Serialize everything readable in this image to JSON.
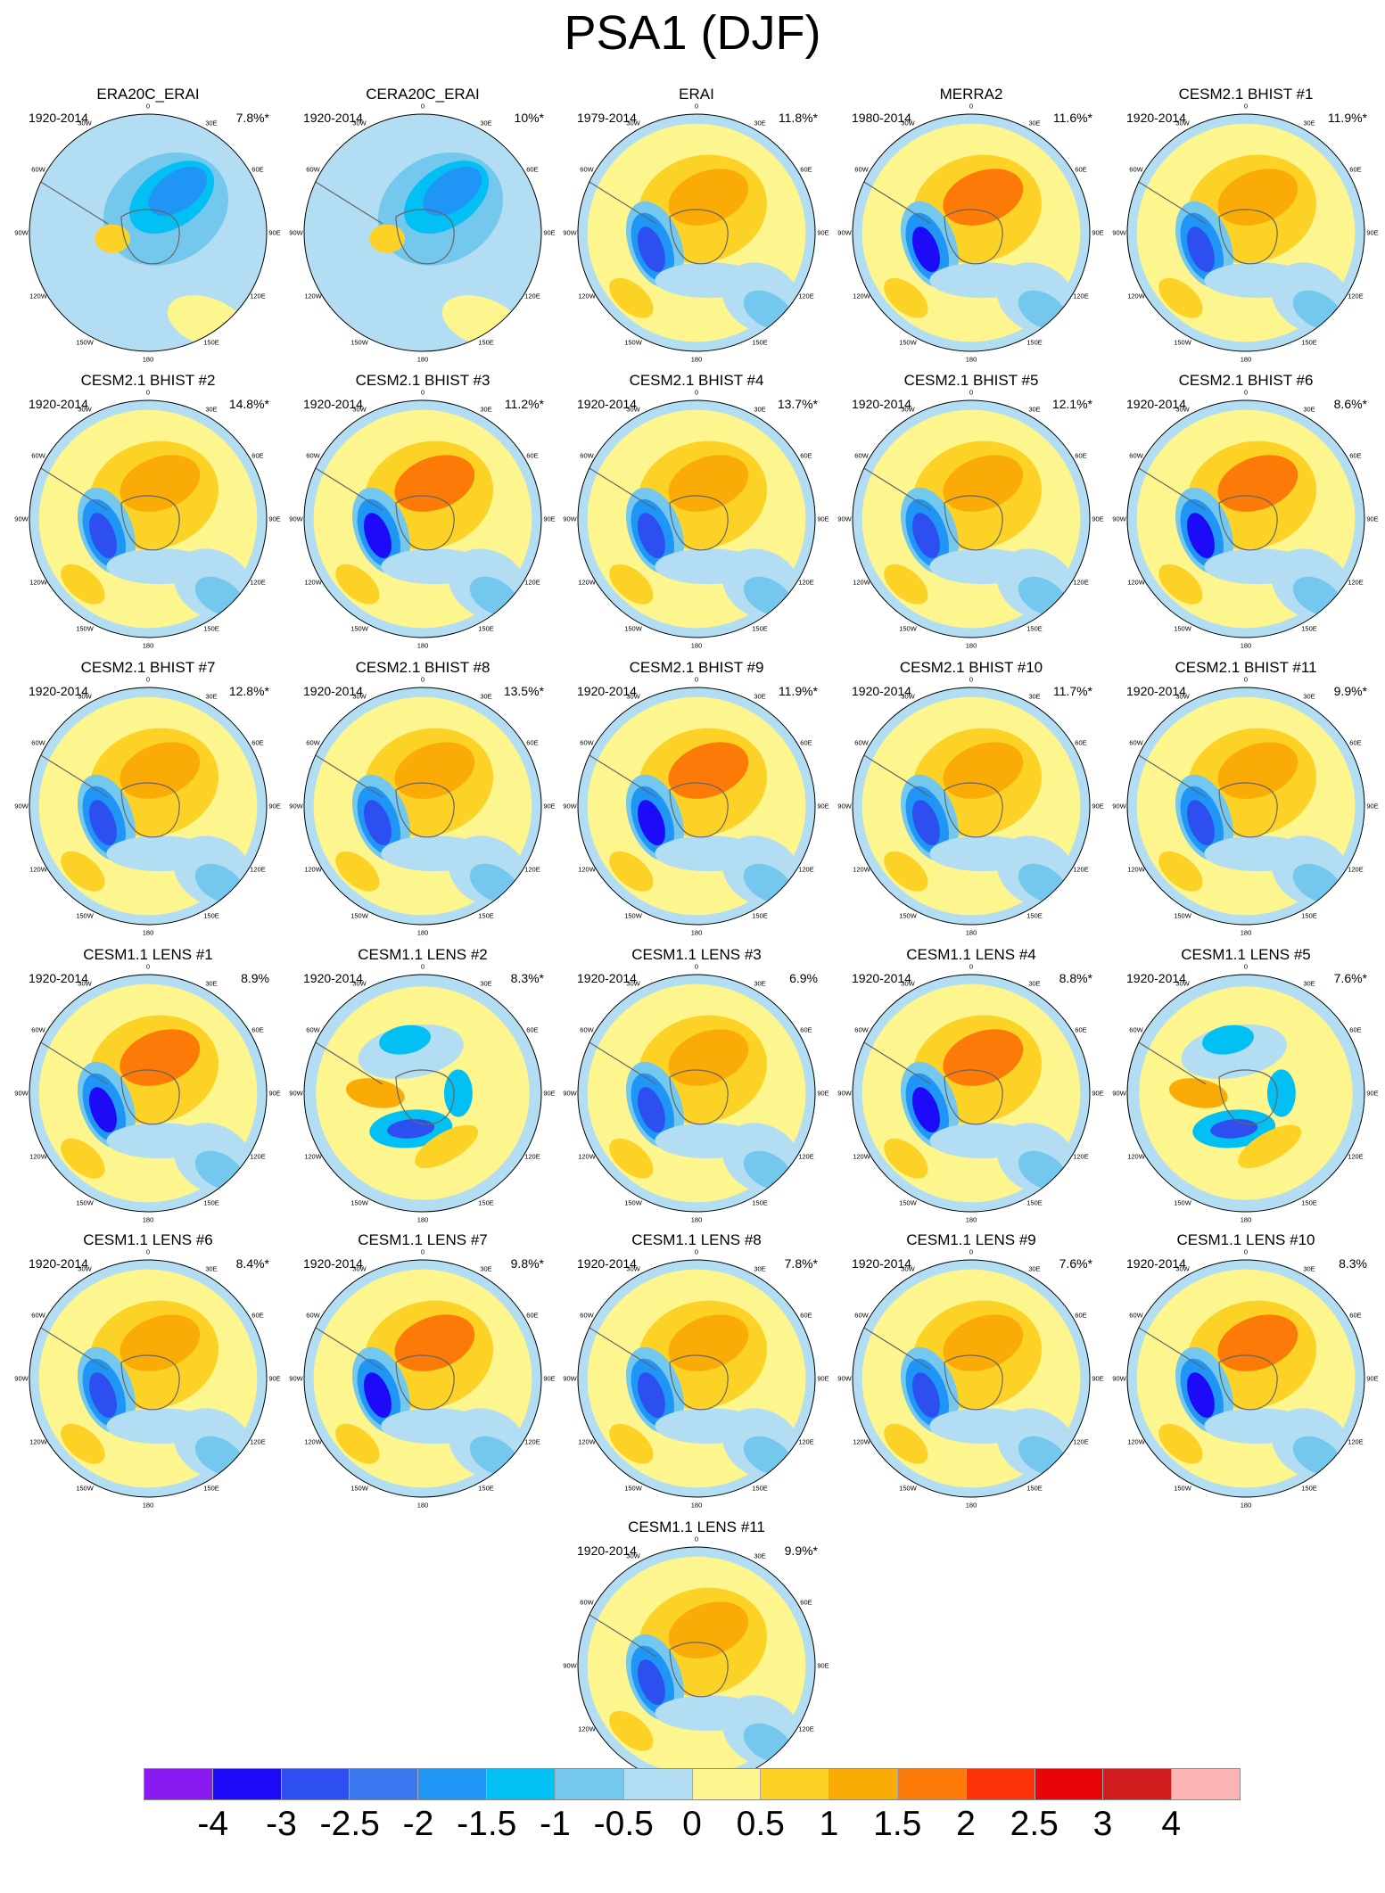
{
  "title": "PSA1 (DJF)",
  "lon_labels": [
    "0",
    "30E",
    "60E",
    "90E",
    "120E",
    "150E",
    "180",
    "150W",
    "120W",
    "90W",
    "60W",
    "30W"
  ],
  "panels": [
    {
      "title": "ERA20C_ERAI",
      "period": "1920-2014",
      "variance": "7.8%*"
    },
    {
      "title": "CERA20C_ERAI",
      "period": "1920-2014",
      "variance": "10%*"
    },
    {
      "title": "ERAI",
      "period": "1979-2014",
      "variance": "11.8%*"
    },
    {
      "title": "MERRA2",
      "period": "1980-2014",
      "variance": "11.6%*"
    },
    {
      "title": "CESM2.1 BHIST #1",
      "period": "1920-2014",
      "variance": "11.9%*"
    },
    {
      "title": "CESM2.1 BHIST #2",
      "period": "1920-2014",
      "variance": "14.8%*"
    },
    {
      "title": "CESM2.1 BHIST #3",
      "period": "1920-2014",
      "variance": "11.2%*"
    },
    {
      "title": "CESM2.1 BHIST #4",
      "period": "1920-2014",
      "variance": "13.7%*"
    },
    {
      "title": "CESM2.1 BHIST #5",
      "period": "1920-2014",
      "variance": "12.1%*"
    },
    {
      "title": "CESM2.1 BHIST #6",
      "period": "1920-2014",
      "variance": "8.6%*"
    },
    {
      "title": "CESM2.1 BHIST #7",
      "period": "1920-2014",
      "variance": "12.8%*"
    },
    {
      "title": "CESM2.1 BHIST #8",
      "period": "1920-2014",
      "variance": "13.5%*"
    },
    {
      "title": "CESM2.1 BHIST #9",
      "period": "1920-2014",
      "variance": "11.9%*"
    },
    {
      "title": "CESM2.1 BHIST #10",
      "period": "1920-2014",
      "variance": "11.7%*"
    },
    {
      "title": "CESM2.1 BHIST #11",
      "period": "1920-2014",
      "variance": "9.9%*"
    },
    {
      "title": "CESM1.1 LENS #1",
      "period": "1920-2014",
      "variance": "8.9%"
    },
    {
      "title": "CESM1.1 LENS #2",
      "period": "1920-2014",
      "variance": "8.3%*"
    },
    {
      "title": "CESM1.1 LENS #3",
      "period": "1920-2014",
      "variance": "6.9%"
    },
    {
      "title": "CESM1.1 LENS #4",
      "period": "1920-2014",
      "variance": "8.8%*"
    },
    {
      "title": "CESM1.1 LENS #5",
      "period": "1920-2014",
      "variance": "7.6%*"
    },
    {
      "title": "CESM1.1 LENS #6",
      "period": "1920-2014",
      "variance": "8.4%*"
    },
    {
      "title": "CESM1.1 LENS #7",
      "period": "1920-2014",
      "variance": "9.8%*"
    },
    {
      "title": "CESM1.1 LENS #8",
      "period": "1920-2014",
      "variance": "7.8%*"
    },
    {
      "title": "CESM1.1 LENS #9",
      "period": "1920-2014",
      "variance": "7.6%*"
    },
    {
      "title": "CESM1.1 LENS #10",
      "period": "1920-2014",
      "variance": "8.3%"
    },
    {
      "title": "CESM1.1 LENS #11",
      "period": "1920-2014",
      "variance": "9.9%*"
    }
  ],
  "colorbar": {
    "colors": [
      "#8a1bf0",
      "#1d0af7",
      "#2e4ff0",
      "#3a76ee",
      "#1f95f6",
      "#02bff4",
      "#74c8ee",
      "#b3ddf2",
      "#fdf58e",
      "#fdd226",
      "#fbab06",
      "#fb7a08",
      "#fc3209",
      "#e70409",
      "#cf1c1d",
      "#fdb4b5"
    ],
    "labels": [
      "-4",
      "-3",
      "-2.5",
      "-2",
      "-1.5",
      "-1",
      "-0.5",
      "0",
      "0.5",
      "1",
      "1.5",
      "2",
      "2.5",
      "3",
      "4"
    ]
  }
}
